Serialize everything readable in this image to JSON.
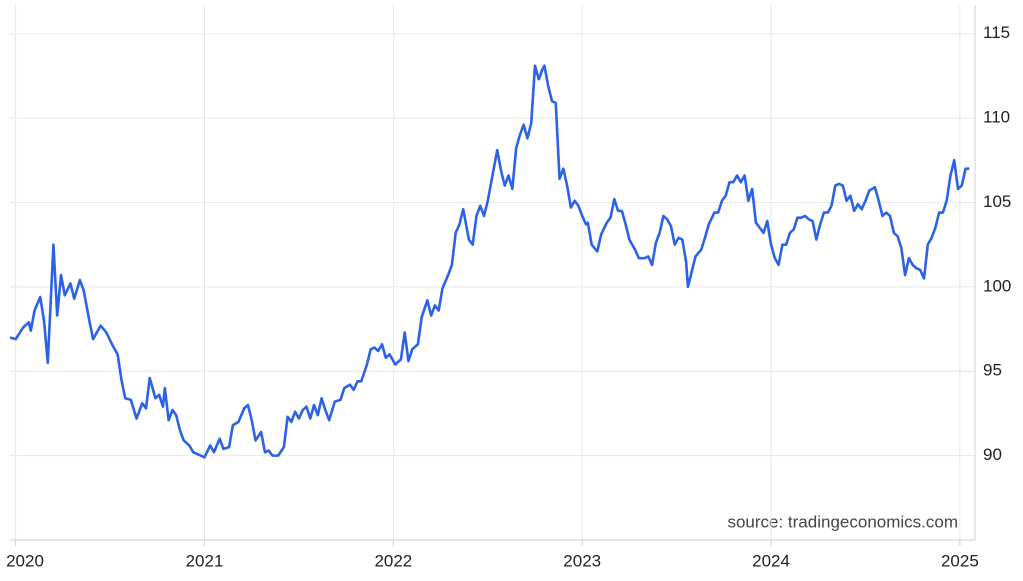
{
  "chart_data": {
    "type": "line",
    "annotation": "source: tradingeconomics.com",
    "x": [
      2019.97,
      2020.0,
      2020.04,
      2020.07,
      2020.08,
      2020.1,
      2020.13,
      2020.15,
      2020.17,
      2020.2,
      2020.22,
      2020.24,
      2020.26,
      2020.29,
      2020.31,
      2020.34,
      2020.36,
      2020.39,
      2020.41,
      2020.45,
      2020.48,
      2020.51,
      2020.54,
      2020.56,
      2020.58,
      2020.61,
      2020.64,
      2020.67,
      2020.69,
      2020.71,
      2020.74,
      2020.76,
      2020.78,
      2020.79,
      2020.81,
      2020.83,
      2020.85,
      2020.87,
      2020.89,
      2020.92,
      2020.94,
      2020.98,
      2021.0,
      2021.03,
      2021.05,
      2021.08,
      2021.1,
      2021.13,
      2021.15,
      2021.18,
      2021.21,
      2021.23,
      2021.25,
      2021.27,
      2021.3,
      2021.32,
      2021.34,
      2021.36,
      2021.39,
      2021.42,
      2021.44,
      2021.46,
      2021.48,
      2021.5,
      2021.52,
      2021.54,
      2021.56,
      2021.58,
      2021.6,
      2021.62,
      2021.64,
      2021.66,
      2021.69,
      2021.72,
      2021.74,
      2021.77,
      2021.79,
      2021.81,
      2021.83,
      2021.86,
      2021.88,
      2021.9,
      2021.92,
      2021.94,
      2021.96,
      2021.98,
      2022.01,
      2022.04,
      2022.06,
      2022.08,
      2022.1,
      2022.13,
      2022.15,
      2022.18,
      2022.2,
      2022.22,
      2022.24,
      2022.26,
      2022.29,
      2022.31,
      2022.33,
      2022.35,
      2022.37,
      2022.4,
      2022.42,
      2022.44,
      2022.46,
      2022.48,
      2022.5,
      2022.53,
      2022.55,
      2022.57,
      2022.59,
      2022.61,
      2022.63,
      2022.65,
      2022.67,
      2022.69,
      2022.71,
      2022.73,
      2022.75,
      2022.77,
      2022.79,
      2022.8,
      2022.82,
      2022.84,
      2022.86,
      2022.88,
      2022.9,
      2022.92,
      2022.94,
      2022.96,
      2022.98,
      2023.0,
      2023.02,
      2023.03,
      2023.05,
      2023.08,
      2023.1,
      2023.13,
      2023.15,
      2023.17,
      2023.19,
      2023.21,
      2023.23,
      2023.25,
      2023.28,
      2023.3,
      2023.33,
      2023.35,
      2023.37,
      2023.39,
      2023.41,
      2023.43,
      2023.45,
      2023.47,
      2023.49,
      2023.51,
      2023.53,
      2023.55,
      2023.56,
      2023.58,
      2023.6,
      2023.63,
      2023.65,
      2023.67,
      2023.7,
      2023.72,
      2023.74,
      2023.76,
      2023.78,
      2023.8,
      2023.82,
      2023.84,
      2023.86,
      2023.88,
      2023.9,
      2023.92,
      2023.94,
      2023.96,
      2023.98,
      2024.0,
      2024.02,
      2024.04,
      2024.06,
      2024.08,
      2024.1,
      2024.12,
      2024.14,
      2024.16,
      2024.18,
      2024.2,
      2024.22,
      2024.24,
      2024.26,
      2024.28,
      2024.3,
      2024.32,
      2024.34,
      2024.36,
      2024.38,
      2024.4,
      2024.42,
      2024.44,
      2024.46,
      2024.48,
      2024.5,
      2024.52,
      2024.55,
      2024.57,
      2024.59,
      2024.61,
      2024.63,
      2024.65,
      2024.67,
      2024.69,
      2024.71,
      2024.73,
      2024.75,
      2024.77,
      2024.79,
      2024.81,
      2024.83,
      2024.85,
      2024.87,
      2024.89,
      2024.91,
      2024.93,
      2024.95,
      2024.97,
      2024.99,
      2025.01,
      2025.03,
      2025.05
    ],
    "series": [
      {
        "color": "#2c62e6",
        "values": [
          97.0,
          96.9,
          97.6,
          97.9,
          97.4,
          98.6,
          99.4,
          98.0,
          95.5,
          102.5,
          98.3,
          100.7,
          99.5,
          100.2,
          99.3,
          100.4,
          99.8,
          98.0,
          96.9,
          97.7,
          97.3,
          96.6,
          96.0,
          94.5,
          93.4,
          93.3,
          92.2,
          93.1,
          92.8,
          94.6,
          93.4,
          93.6,
          92.9,
          94.0,
          92.1,
          92.7,
          92.4,
          91.5,
          90.9,
          90.6,
          90.2,
          90.0,
          89.9,
          90.6,
          90.2,
          91.0,
          90.4,
          90.5,
          91.8,
          92.0,
          92.8,
          93.0,
          92.1,
          90.9,
          91.4,
          90.2,
          90.3,
          90.0,
          90.0,
          90.5,
          92.3,
          92.0,
          92.6,
          92.2,
          92.7,
          92.9,
          92.2,
          93.0,
          92.4,
          93.4,
          92.7,
          92.1,
          93.2,
          93.3,
          94.0,
          94.2,
          93.9,
          94.4,
          94.4,
          95.4,
          96.3,
          96.4,
          96.2,
          96.6,
          95.8,
          96.0,
          95.4,
          95.7,
          97.3,
          95.6,
          96.3,
          96.6,
          98.2,
          99.2,
          98.3,
          98.9,
          98.6,
          99.9,
          100.7,
          101.3,
          103.2,
          103.7,
          104.6,
          102.8,
          102.5,
          104.2,
          104.8,
          104.2,
          105.1,
          106.9,
          108.1,
          106.9,
          106.0,
          106.6,
          105.8,
          108.2,
          109.0,
          109.6,
          108.8,
          109.7,
          113.1,
          112.3,
          112.9,
          113.1,
          111.9,
          111.0,
          110.9,
          106.4,
          107.0,
          106.0,
          104.7,
          105.1,
          104.8,
          104.2,
          103.7,
          103.8,
          102.5,
          102.1,
          103.1,
          103.8,
          104.1,
          105.2,
          104.5,
          104.5,
          103.7,
          102.8,
          102.2,
          101.7,
          101.7,
          101.8,
          101.3,
          102.6,
          103.2,
          104.2,
          104.0,
          103.6,
          102.5,
          102.9,
          102.8,
          101.5,
          100.0,
          100.9,
          101.8,
          102.2,
          102.9,
          103.7,
          104.4,
          104.4,
          105.1,
          105.4,
          106.2,
          106.2,
          106.6,
          106.2,
          106.6,
          105.1,
          105.8,
          103.8,
          103.5,
          103.2,
          103.9,
          102.5,
          101.7,
          101.3,
          102.5,
          102.5,
          103.2,
          103.4,
          104.1,
          104.1,
          104.2,
          104.0,
          103.9,
          102.8,
          103.7,
          104.4,
          104.4,
          104.8,
          106.0,
          106.1,
          106.0,
          105.1,
          105.4,
          104.5,
          104.9,
          104.6,
          105.1,
          105.7,
          105.9,
          105.1,
          104.2,
          104.4,
          104.2,
          103.2,
          103.0,
          102.3,
          100.7,
          101.7,
          101.3,
          101.1,
          101.0,
          100.5,
          102.5,
          102.9,
          103.5,
          104.4,
          104.4,
          105.1,
          106.6,
          107.5,
          105.8,
          106.0,
          107.0,
          107.0
        ]
      }
    ],
    "xlim": [
      2019.97,
      2025.08
    ],
    "xticks": [
      2020,
      2021,
      2022,
      2023,
      2024,
      2025
    ],
    "ylim": [
      85.0,
      116.7
    ],
    "yticks": [
      90,
      95,
      100,
      105,
      110,
      115
    ],
    "grid": true
  }
}
